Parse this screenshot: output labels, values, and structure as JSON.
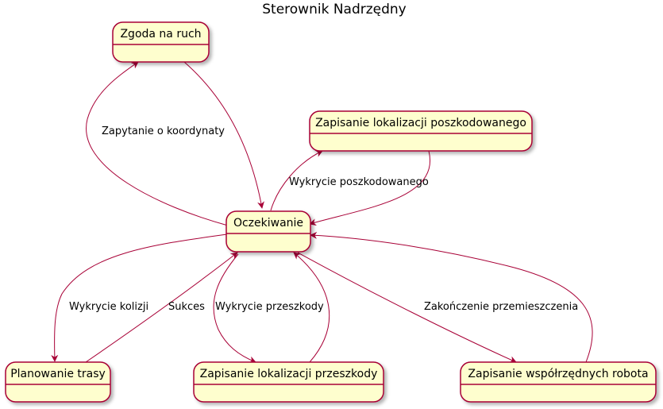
{
  "title": "Sterownik Nadrzędny",
  "colors": {
    "state_fill": "#fefece",
    "state_border": "#a80036",
    "edge": "#a80036",
    "shadow": "#c8c8c8"
  },
  "states": {
    "zgoda": "Zgoda na ruch",
    "zapis_poszkodowanego": "Zapisanie lokalizacji poszkodowanego",
    "oczekiwanie": "Oczekiwanie",
    "planowanie": "Planowanie trasy",
    "zapis_przeszkody": "Zapisanie lokalizacji przeszkody",
    "zapis_robota": "Zapisanie współrzędnych robota"
  },
  "transitions": {
    "zapytanie": "Zapytanie o koordynaty",
    "wykrycie_poszkodowanego": "Wykrycie poszkodowanego",
    "wykrycie_kolizji": "Wykrycie kolizji",
    "sukces": "Sukces",
    "wykrycie_przeszkody": "Wykrycie przeszkody",
    "zakonczenie": "Zakończenie przemieszczenia"
  }
}
